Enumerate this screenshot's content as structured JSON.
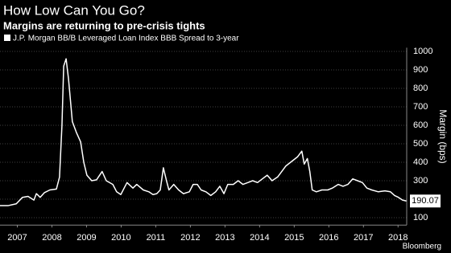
{
  "chart_data": {
    "type": "line",
    "title": "How Low Can You Go?",
    "subtitle": "Margins are returning to pre-crisis tights",
    "y_label": "Margin (bps)",
    "source": "Bloomberg",
    "series": [
      {
        "name": "J.P. Morgan BB/B Leveraged Loan Index BBB Spread to 3-year",
        "color": "#ffffff",
        "x": [
          2007,
          2007.23,
          2007.47,
          2007.65,
          2007.81,
          2007.98,
          2008.05,
          2008.16,
          2008.28,
          2008.44,
          2008.63,
          2008.72,
          2008.79,
          2008.84,
          2008.91,
          2008.98,
          2009.09,
          2009.21,
          2009.33,
          2009.42,
          2009.51,
          2009.65,
          2009.79,
          2009.88,
          2009.95,
          2010.07,
          2010.26,
          2010.37,
          2010.49,
          2010.6,
          2010.67,
          2010.84,
          2010.95,
          2011.14,
          2011.3,
          2011.42,
          2011.53,
          2011.63,
          2011.72,
          2011.81,
          2011.88,
          2012.02,
          2012.16,
          2012.3,
          2012.47,
          2012.58,
          2012.7,
          2012.81,
          2012.95,
          2013.09,
          2013.23,
          2013.35,
          2013.47,
          2013.58,
          2013.74,
          2013.88,
          2014.02,
          2014.16,
          2014.3,
          2014.44,
          2014.58,
          2014.72,
          2014.86,
          2015.02,
          2015.26,
          2015.6,
          2015.72,
          2015.79,
          2015.88,
          2015.95,
          2016.02,
          2016.14,
          2016.3,
          2016.47,
          2016.6,
          2016.77,
          2016.91,
          2017.05,
          2017.19,
          2017.33,
          2017.47,
          2017.6,
          2017.74,
          2017.93,
          2018.12,
          2018.28,
          2018.4,
          2018.51,
          2018.63,
          2018.74
        ],
        "values": [
          165,
          165,
          175,
          210,
          215,
          195,
          230,
          210,
          235,
          250,
          255,
          320,
          600,
          920,
          960,
          850,
          620,
          560,
          510,
          400,
          330,
          300,
          305,
          330,
          350,
          300,
          280,
          240,
          225,
          265,
          290,
          260,
          280,
          250,
          240,
          225,
          230,
          250,
          370,
          300,
          250,
          280,
          250,
          230,
          240,
          280,
          280,
          250,
          240,
          220,
          240,
          270,
          230,
          280,
          280,
          300,
          280,
          290,
          300,
          290,
          310,
          330,
          300,
          320,
          380,
          430,
          460,
          390,
          420,
          350,
          250,
          240,
          250,
          250,
          260,
          280,
          270,
          280,
          310,
          300,
          290,
          260,
          250,
          240,
          245,
          240,
          220,
          210,
          195,
          190.07
        ]
      }
    ],
    "xlim": [
      2007,
      2018.75
    ],
    "xticks": [
      {
        "value": 2007.5,
        "label": "2007"
      },
      {
        "value": 2008.5,
        "label": "2008"
      },
      {
        "value": 2009.5,
        "label": "2009"
      },
      {
        "value": 2010.5,
        "label": "2010"
      },
      {
        "value": 2011.5,
        "label": "2011"
      },
      {
        "value": 2012.5,
        "label": "2012"
      },
      {
        "value": 2013.5,
        "label": "2013"
      },
      {
        "value": 2014.5,
        "label": "2014"
      },
      {
        "value": 2015.5,
        "label": "2015"
      },
      {
        "value": 2016.5,
        "label": "2016"
      },
      {
        "value": 2017.5,
        "label": "2017"
      },
      {
        "value": 2018.5,
        "label": "2018"
      }
    ],
    "ylim": [
      60,
      1020
    ],
    "yticks": [
      100,
      200,
      300,
      400,
      500,
      600,
      700,
      800,
      900,
      1000
    ],
    "grid": true
  }
}
